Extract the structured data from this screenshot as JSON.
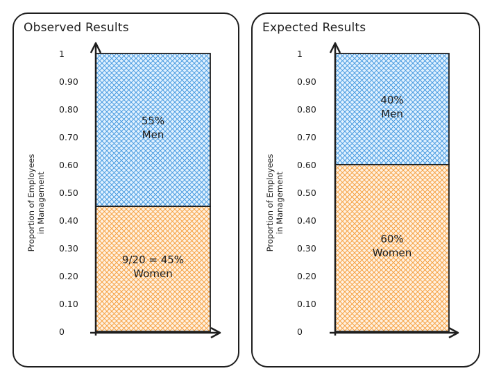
{
  "chart_data": [
    {
      "type": "bar",
      "stacked": true,
      "title": "Observed Results",
      "ylabel": [
        "Proportion of Employees",
        "in Management"
      ],
      "ylim": [
        0,
        1
      ],
      "yticks": [
        "0",
        "0.10",
        "0.20",
        "0.30",
        "0.40",
        "0.50",
        "0.60",
        "0.70",
        "0.80",
        "0.90",
        "1"
      ],
      "series": [
        {
          "name": "Women",
          "value": 0.45,
          "label": [
            "9/20 = 45%",
            "Women"
          ],
          "color": "#f08c00",
          "fill": "#ffd8a8"
        },
        {
          "name": "Men",
          "value": 0.55,
          "label": [
            "55%",
            "Men"
          ],
          "color": "#1971c2",
          "fill": "#a5d8ff"
        }
      ]
    },
    {
      "type": "bar",
      "stacked": true,
      "title": "Expected Results",
      "ylabel": [
        "Proportion of Employees",
        "in Management"
      ],
      "ylim": [
        0,
        1
      ],
      "yticks": [
        "0",
        "0.10",
        "0.20",
        "0.30",
        "0.40",
        "0.50",
        "0.60",
        "0.70",
        "0.80",
        "0.90",
        "1"
      ],
      "series": [
        {
          "name": "Women",
          "value": 0.6,
          "label": [
            "60%",
            "Women"
          ],
          "color": "#f08c00",
          "fill": "#ffd8a8"
        },
        {
          "name": "Men",
          "value": 0.4,
          "label": [
            "40%",
            "Men"
          ],
          "color": "#1971c2",
          "fill": "#a5d8ff"
        }
      ]
    }
  ]
}
